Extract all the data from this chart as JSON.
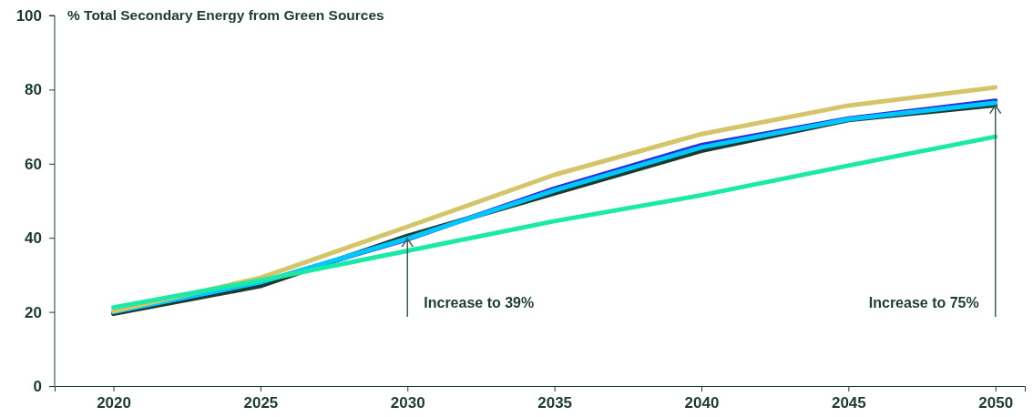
{
  "chart_data": {
    "type": "line",
    "title": "% Total Secondary Energy from Green Sources",
    "x": [
      2020,
      2025,
      2030,
      2035,
      2040,
      2045,
      2050
    ],
    "xlim": [
      2018,
      2051
    ],
    "xticks": [
      2020,
      2025,
      2030,
      2035,
      2040,
      2045,
      2050
    ],
    "ylim": [
      0,
      100
    ],
    "yticks": [
      0,
      20,
      40,
      60,
      80,
      100
    ],
    "grid": false,
    "marker": "none",
    "line_style": "solid",
    "series": [
      {
        "color": "#1d3a2f",
        "values": [
          19.5,
          27,
          40.5,
          52,
          63.5,
          71.8,
          75.8
        ]
      },
      {
        "color": "#2b2be0",
        "values": [
          20,
          28,
          39.6,
          53.3,
          65,
          72.2,
          77
        ]
      },
      {
        "color": "#00c8ff",
        "values": [
          20,
          28,
          39.8,
          52.8,
          64.4,
          72,
          76.4
        ]
      },
      {
        "color": "#d4c56a",
        "values": [
          20.2,
          29.2,
          43,
          57,
          68,
          75.7,
          80.6
        ]
      },
      {
        "color": "#1de9a6",
        "values": [
          21.2,
          28.5,
          36.5,
          44.5,
          51.5,
          59.5,
          67.3
        ]
      }
    ],
    "annotations": [
      {
        "text": "Increase to 39%",
        "x": 2030,
        "y": 40
      },
      {
        "text": "Increase to 75%",
        "x": 2050,
        "y": 76
      }
    ]
  }
}
